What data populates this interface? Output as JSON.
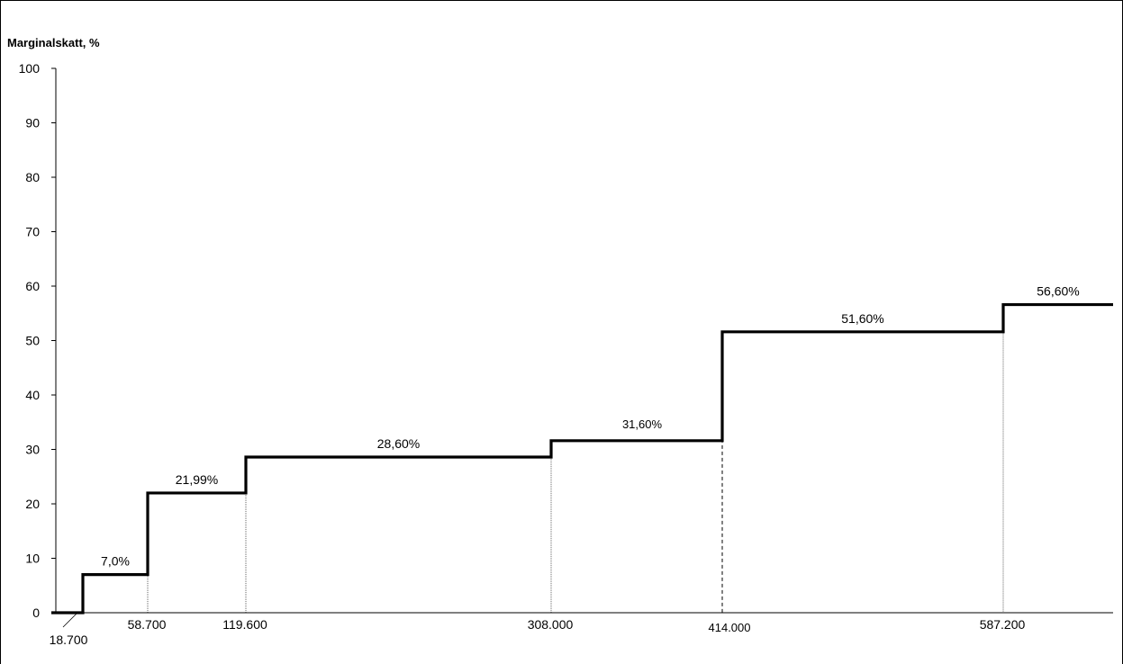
{
  "chart_data": {
    "type": "line",
    "step": true,
    "ylabel": "Marginalskatt, %",
    "ylim": [
      0,
      100
    ],
    "yticks": [
      0,
      10,
      20,
      30,
      40,
      50,
      60,
      70,
      80,
      90,
      100
    ],
    "grid": false,
    "segments": [
      {
        "from": 0,
        "to": 18700,
        "rate": 0
      },
      {
        "from": 18700,
        "to": 58700,
        "rate": 7.0,
        "label": "7,0%"
      },
      {
        "from": 58700,
        "to": 119600,
        "rate": 21.99,
        "label": "21,99%"
      },
      {
        "from": 119600,
        "to": 308000,
        "rate": 28.6,
        "label": "28,60%"
      },
      {
        "from": 308000,
        "to": 414000,
        "rate": 31.6,
        "label": "31,60%"
      },
      {
        "from": 414000,
        "to": 587200,
        "rate": 51.6,
        "label": "51,60%"
      },
      {
        "from": 587200,
        "to": null,
        "rate": 56.6,
        "label": "56,60%"
      }
    ],
    "thresholds": [
      {
        "value": 18700,
        "label": "18.700"
      },
      {
        "value": 58700,
        "label": "58.700"
      },
      {
        "value": 119600,
        "label": "119.600"
      },
      {
        "value": 308000,
        "label": "308.000"
      },
      {
        "value": 414000,
        "label": "414.000"
      },
      {
        "value": 587200,
        "label": "587.200"
      }
    ]
  }
}
